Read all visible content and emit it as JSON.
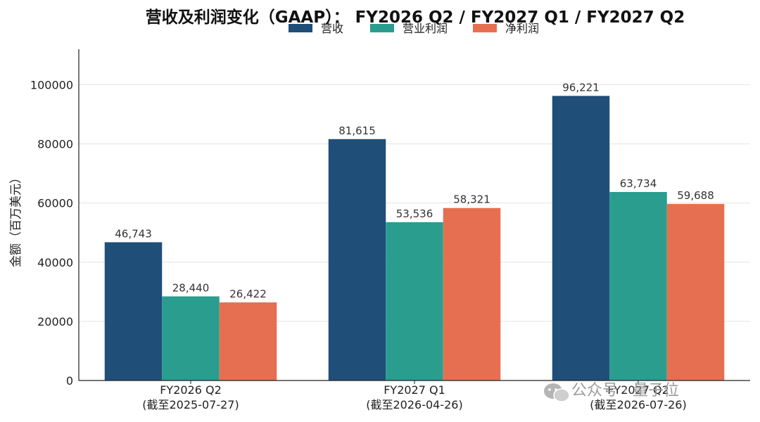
{
  "chart_data": {
    "type": "bar",
    "title": "营收及利润变化（GAAP）： FY2026 Q2 / FY2027 Q1 / FY2027 Q2",
    "ylabel": "金额（百万美元）",
    "xlabel": "",
    "ylim": [
      0,
      112000
    ],
    "yticks": [
      0,
      20000,
      40000,
      60000,
      80000,
      100000
    ],
    "grid": true,
    "legend_position": "top-center",
    "categories": [
      [
        "FY2026 Q2",
        "(截至2025-07-27)"
      ],
      [
        "FY2027 Q1",
        "(截至2026-04-26)"
      ],
      [
        "FY2027 Q2",
        "(截至2026-07-26)"
      ]
    ],
    "series": [
      {
        "name": "营收",
        "color": "#1f4e79",
        "values": [
          46743,
          81615,
          96221
        ],
        "labels": [
          "46,743",
          "81,615",
          "96,221"
        ]
      },
      {
        "name": "营业利润",
        "color": "#2a9d8f",
        "values": [
          28440,
          53536,
          63734
        ],
        "labels": [
          "28,440",
          "53,536",
          "63,734"
        ]
      },
      {
        "name": "净利润",
        "color": "#e76f51",
        "values": [
          26422,
          58321,
          59688
        ],
        "labels": [
          "26,422",
          "58,321",
          "59,688"
        ]
      }
    ]
  },
  "watermark": {
    "text": "公众号 · 量子位",
    "icon": "wechat-icon"
  }
}
